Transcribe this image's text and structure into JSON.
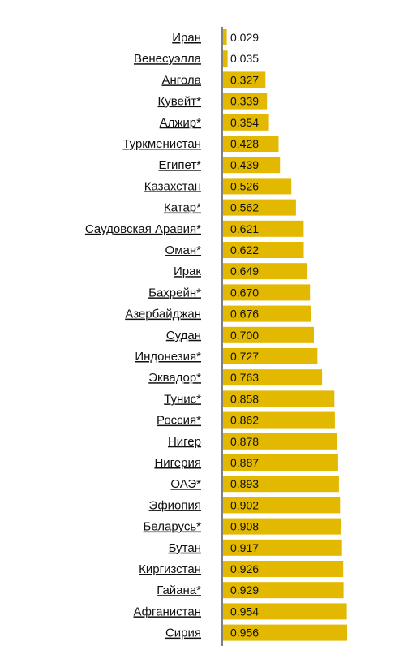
{
  "chart_data": {
    "type": "bar",
    "orientation": "horizontal",
    "categories": [
      "Иран",
      "Венесуэлла",
      "Ангола",
      "Кувейт*",
      "Алжир*",
      "Туркменистан",
      "Египет*",
      "Казахстан",
      "Катар*",
      "Саудовская Аравия*",
      "Оман*",
      "Ирак",
      "Бахрейн*",
      "Азербайджан",
      "Судан",
      "Индонезия*",
      "Эквадор*",
      "Тунис*",
      "Россия*",
      "Нигер",
      "Нигерия",
      "ОАЭ*",
      "Эфиопия",
      "Беларусь*",
      "Бутан",
      "Киргизстан",
      "Гайана*",
      "Афганистан",
      "Сирия"
    ],
    "values": [
      0.029,
      0.035,
      0.327,
      0.339,
      0.354,
      0.428,
      0.439,
      0.526,
      0.562,
      0.621,
      0.622,
      0.649,
      0.67,
      0.676,
      0.7,
      0.727,
      0.763,
      0.858,
      0.862,
      0.878,
      0.887,
      0.893,
      0.902,
      0.908,
      0.917,
      0.926,
      0.929,
      0.954,
      0.956
    ],
    "value_labels": [
      "0.029",
      "0.035",
      "0.327",
      "0.339",
      "0.354",
      "0.428",
      "0.439",
      "0.526",
      "0.562",
      "0.621",
      "0.622",
      "0.649",
      "0.670",
      "0.676",
      "0.700",
      "0.727",
      "0.763",
      "0.858",
      "0.862",
      "0.878",
      "0.887",
      "0.893",
      "0.902",
      "0.908",
      "0.917",
      "0.926",
      "0.929",
      "0.954",
      "0.956"
    ],
    "xlim": [
      0,
      1
    ],
    "grid": false,
    "legend": "none",
    "colors": {
      "bar": "#e2b800",
      "axis": "#000000",
      "text": "#111111"
    }
  }
}
